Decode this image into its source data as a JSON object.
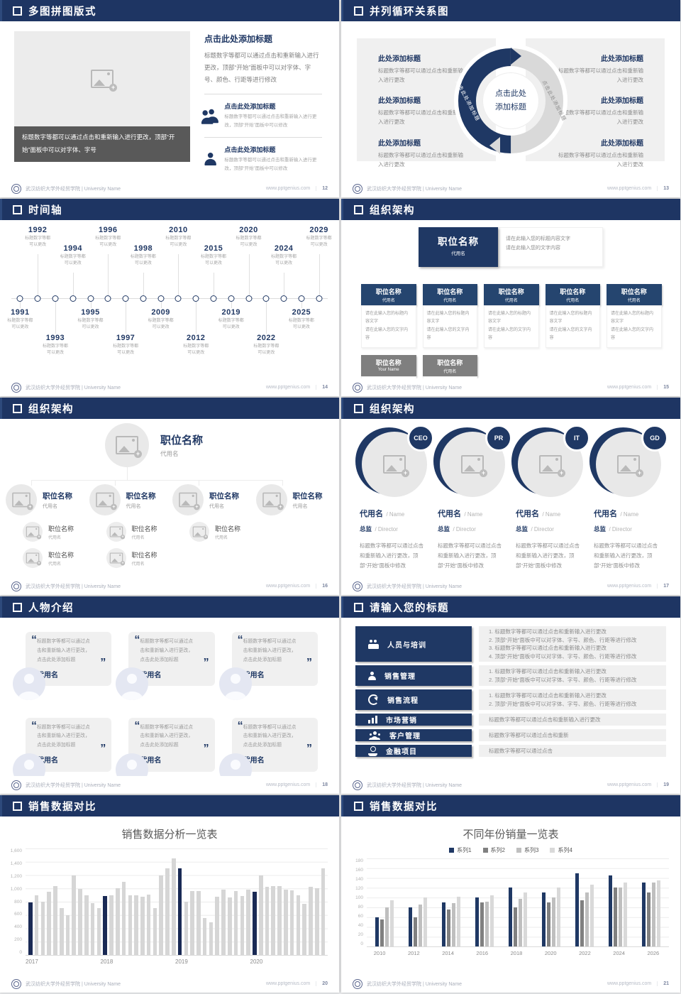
{
  "footer": {
    "org": "武汉纺织大学外经贸学院 | University Name",
    "site": "www.pptgenius.com",
    "sep": "｜"
  },
  "slides": {
    "s12": {
      "page": "12",
      "title": "多图拼图版式",
      "caption": "标题数字等都可以通过点击和重新输入进行更改，顶部“开始”面板中可以对字体、字号",
      "heading": "点击此处添加标题",
      "body": "标题数字等都可以通过点击和重新输入进行更改，顶部“开始”面板中可以对字体、字号、颜色、行距等进行修改",
      "items": [
        {
          "heading": "点击此处添加标题",
          "text": "标题数字等都可以通过点击和重新输入进行更改，顶部“开始”面板中可以修改"
        },
        {
          "heading": "点击此处添加标题",
          "text": "标题数字等都可以通过点击和重新输入进行更改，顶部“开始”面板中可以修改"
        }
      ]
    },
    "s13": {
      "page": "13",
      "title": "并列循环关系图",
      "hub": "点击此处\n添加标题",
      "arc_left": "点击此处添加标题",
      "arc_right": "点击此处添加标题",
      "entries_left": [
        {
          "heading": "此处添加标题",
          "text": "标题数字等都可以通过点击和重新输入进行更改"
        },
        {
          "heading": "此处添加标题",
          "text": "标题数字等都可以通过点击和重新输入进行更改"
        },
        {
          "heading": "此处添加标题",
          "text": "标题数字等都可以通过点击和重新输入进行更改"
        }
      ],
      "entries_right": [
        {
          "heading": "此处添加标题",
          "text": "标题数字等都可以通过点击和重新输入进行更改"
        },
        {
          "heading": "此处添加标题",
          "text": "标题数字等都可以通过点击和重新输入进行更改"
        },
        {
          "heading": "此处添加标题",
          "text": "标题数字等都可以通过点击和重新输入进行更改"
        }
      ]
    },
    "s14": {
      "page": "14",
      "title": "时间轴",
      "caption": "标题数字等都\n可以更改",
      "points": [
        {
          "year": "1991",
          "side": "down",
          "lvl": "l1"
        },
        {
          "year": "1992",
          "side": "up",
          "lvl": "l1"
        },
        {
          "year": "1993",
          "side": "down",
          "lvl": "l2"
        },
        {
          "year": "1994",
          "side": "up",
          "lvl": "l2"
        },
        {
          "year": "1995",
          "side": "down",
          "lvl": "l1"
        },
        {
          "year": "1996",
          "side": "up",
          "lvl": "l1"
        },
        {
          "year": "1997",
          "side": "down",
          "lvl": "l2"
        },
        {
          "year": "1998",
          "side": "up",
          "lvl": "l2"
        },
        {
          "year": "2009",
          "side": "down",
          "lvl": "l1"
        },
        {
          "year": "2010",
          "side": "up",
          "lvl": "l1"
        },
        {
          "year": "2012",
          "side": "down",
          "lvl": "l2"
        },
        {
          "year": "2015",
          "side": "up",
          "lvl": "l2"
        },
        {
          "year": "2019",
          "side": "down",
          "lvl": "l1"
        },
        {
          "year": "2020",
          "side": "up",
          "lvl": "l1"
        },
        {
          "year": "2022",
          "side": "down",
          "lvl": "l2"
        },
        {
          "year": "2024",
          "side": "up",
          "lvl": "l2"
        },
        {
          "year": "2025",
          "side": "down",
          "lvl": "l1"
        },
        {
          "year": "2029",
          "side": "up",
          "lvl": "l1"
        }
      ]
    },
    "s15": {
      "page": "15",
      "title": "组织架构",
      "root": {
        "title": "职位名称",
        "name": "代用名"
      },
      "note": "请在此输入您的标题内容文字\n请在此输入您的文字内容",
      "row1": [
        {
          "title": "职位名称",
          "name": "代用名"
        },
        {
          "title": "职位名称",
          "name": "代用名"
        },
        {
          "title": "职位名称",
          "name": "代用名"
        },
        {
          "title": "职位名称",
          "name": "代用名"
        },
        {
          "title": "职位名称",
          "name": "代用名"
        }
      ],
      "row2": [
        {
          "title": "职位名称",
          "name": "Your Name"
        },
        {
          "title": "职位名称",
          "name": "代用名"
        }
      ]
    },
    "s16": {
      "page": "16",
      "title": "组织架构",
      "root": {
        "title": "职位名称",
        "name": "代用名"
      },
      "cols": [
        {
          "title": "职位名称",
          "name": "代用名"
        },
        {
          "title": "职位名称",
          "name": "代用名"
        },
        {
          "title": "职位名称",
          "name": "代用名"
        },
        {
          "title": "职位名称",
          "name": "代用名"
        }
      ],
      "sub": {
        "title": "职位名称",
        "name": "代用名"
      }
    },
    "s17": {
      "page": "17",
      "title": "组织架构",
      "cols": [
        {
          "badge": "CEO",
          "name": "代用名",
          "name_en": "/ Name",
          "role": "总监",
          "role_en": "/ Director",
          "text": "标题数字等都可以通过点击和重新输入进行更改，顶部“开始”面板中修改"
        },
        {
          "badge": "PR",
          "name": "代用名",
          "name_en": "/ Name",
          "role": "总监",
          "role_en": "/ Director",
          "text": "标题数字等都可以通过点击和重新输入进行更改，顶部“开始”面板中修改"
        },
        {
          "badge": "IT",
          "name": "代用名",
          "name_en": "/ Name",
          "role": "总监",
          "role_en": "/ Director",
          "text": "标题数字等都可以通过点击和重新输入进行更改，顶部“开始”面板中修改"
        },
        {
          "badge": "GD",
          "name": "代用名",
          "name_en": "/ Name",
          "role": "总监",
          "role_en": "/ Director",
          "text": "标题数字等都可以通过点击和重新输入进行更改，顶部“开始”面板中修改"
        }
      ]
    },
    "s18": {
      "page": "18",
      "title": "人物介绍",
      "cards": [
        {
          "text": "标题数字等都可以通过点击和重新输入进行更改，点击此处添加标题",
          "name": "代用名"
        },
        {
          "text": "标题数字等都可以通过点击和重新输入进行更改，点击此处添加标题",
          "name": "代用名"
        },
        {
          "text": "标题数字等都可以通过点击和重新输入进行更改，点击此处添加标题",
          "name": "代用名"
        },
        {
          "text": "标题数字等都可以通过点击和重新输入进行更改，点击此处添加标题",
          "name": "代用名"
        },
        {
          "text": "标题数字等都可以通过点击和重新输入进行更改，点击此处添加标题",
          "name": "代用名"
        },
        {
          "text": "标题数字等都可以通过点击和重新输入进行更改，点击此处添加标题",
          "name": "代用名"
        }
      ]
    },
    "s19": {
      "page": "19",
      "title": "请输入您的标题",
      "rows": [
        {
          "label": "人员与培训",
          "text": "1.   标题数字等都可以通过点击和重新输入进行更改\n2.   顶部“开始”面板中可以对字体、字号、颜色、行距等进行修改\n3.   标题数字等都可以通过点击和重新输入进行更改\n4.   顶部“开始”面板中可以对字体、字号、颜色、行距等进行修改"
        },
        {
          "label": "销售管理",
          "text": "1.   标题数字等都可以通过点击和重新输入进行更改\n2.   顶部“开始”面板中可以对字体、字号、颜色、行距等进行修改"
        },
        {
          "label": "销售流程",
          "text": "1.   标题数字等都可以通过点击和重新输入进行更改\n2.   顶部“开始”面板中可以对字体、字号、颜色、行距等进行修改"
        },
        {
          "label": "市场营销",
          "text": "标题数字等都可以通过点击和重新输入进行更改"
        },
        {
          "label": "客户管理",
          "text": "标题数字等都可以通过点击和重新"
        },
        {
          "label": "金融项目",
          "text": "标题数字等都可以通过点击"
        }
      ]
    },
    "s20": {
      "page": "20",
      "title": "销售数据对比"
    },
    "s21": {
      "page": "21",
      "title": "销售数据对比"
    }
  },
  "chart_data": [
    {
      "type": "bar",
      "title": "销售数据分析一览表",
      "x_groups": [
        "2017",
        "2018",
        "2019",
        "2020"
      ],
      "values": [
        790,
        900,
        800,
        950,
        1030,
        700,
        600,
        1200,
        990,
        900,
        780,
        700,
        890,
        900,
        1000,
        1100,
        900,
        900,
        880,
        910,
        700,
        1200,
        1300,
        1450,
        1300,
        800,
        960,
        960,
        560,
        490,
        870,
        980,
        860,
        960,
        890,
        980,
        950,
        1200,
        1020,
        1030,
        1030,
        980,
        970,
        900,
        770,
        1020,
        1000,
        1300
      ],
      "highlight_indices": [
        0,
        12,
        24,
        36
      ],
      "bar_color": "#d6d6d6",
      "highlight_color": "#1a2a55",
      "ylim": [
        0,
        1600
      ],
      "yticks": [
        "1,600",
        "1,400",
        "1,200",
        "1,000",
        "800",
        "600",
        "400",
        "200",
        "0"
      ],
      "grid": true,
      "legend_position": "none"
    },
    {
      "type": "bar",
      "title": "不同年份销量一览表",
      "categories": [
        "2010",
        "2012",
        "2014",
        "2016",
        "2018",
        "2020",
        "2022",
        "2024",
        "2026"
      ],
      "series": [
        {
          "name": "系列1",
          "color": "#1f3864",
          "values": [
            60,
            80,
            90,
            100,
            120,
            110,
            150,
            145,
            130
          ]
        },
        {
          "name": "系列2",
          "color": "#808080",
          "values": [
            55,
            60,
            75,
            90,
            80,
            90,
            95,
            120,
            110
          ]
        },
        {
          "name": "系列3",
          "color": "#bfbfbf",
          "values": [
            80,
            86,
            88,
            92,
            98,
            100,
            110,
            120,
            130
          ]
        },
        {
          "name": "系列4",
          "color": "#d9d9d9",
          "values": [
            95,
            100,
            102,
            105,
            110,
            120,
            126,
            130,
            135
          ]
        }
      ],
      "ylim": [
        0,
        180
      ],
      "yticks": [
        "180",
        "160",
        "140",
        "120",
        "100",
        "80",
        "60",
        "40",
        "20",
        "0"
      ],
      "grid": true,
      "legend_position": "top"
    }
  ]
}
